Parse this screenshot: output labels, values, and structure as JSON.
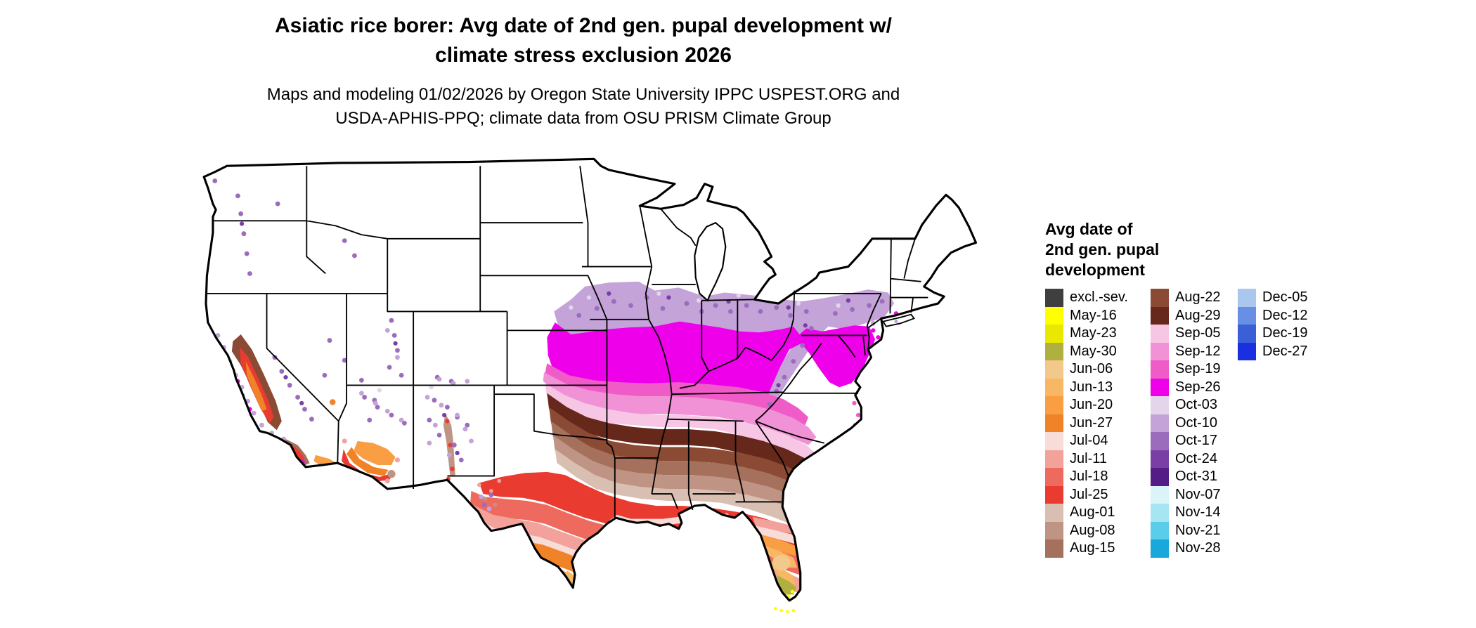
{
  "title": {
    "lines": [
      "Asiatic rice borer: Avg date of 2nd gen. pupal development w/",
      "climate stress exclusion 2026"
    ]
  },
  "subtitle": {
    "lines": [
      "Maps and modeling 01/02/2026 by Oregon State University IPPC USPEST.ORG and",
      "USDA-APHIS-PPQ; climate data from OSU PRISM Climate Group"
    ]
  },
  "legend": {
    "title_lines": [
      "Avg date of",
      "2nd gen. pupal",
      "development"
    ],
    "columns": [
      {
        "entries": [
          {
            "label": "excl.-sev.",
            "color": "#3f3f3f"
          },
          {
            "label": "May-16",
            "color": "#ffff00"
          },
          {
            "label": "May-23",
            "color": "#e8e800"
          },
          {
            "label": "May-30",
            "color": "#b0b040"
          },
          {
            "label": "Jun-06",
            "color": "#f2c98a"
          },
          {
            "label": "Jun-13",
            "color": "#f7b763"
          },
          {
            "label": "Jun-20",
            "color": "#fa9e43"
          },
          {
            "label": "Jun-27",
            "color": "#f08228"
          },
          {
            "label": "Jul-04",
            "color": "#f7dcd8"
          },
          {
            "label": "Jul-11",
            "color": "#f2a19b"
          },
          {
            "label": "Jul-18",
            "color": "#ef6a5e"
          },
          {
            "label": "Jul-25",
            "color": "#ea3b30"
          },
          {
            "label": "Aug-01",
            "color": "#d9beb2"
          },
          {
            "label": "Aug-08",
            "color": "#c09484"
          },
          {
            "label": "Aug-15",
            "color": "#a5705c"
          }
        ]
      },
      {
        "entries": [
          {
            "label": "Aug-22",
            "color": "#8a4a34"
          },
          {
            "label": "Aug-29",
            "color": "#67281c"
          },
          {
            "label": "Sep-05",
            "color": "#f6c6e4"
          },
          {
            "label": "Sep-12",
            "color": "#f292d6"
          },
          {
            "label": "Sep-19",
            "color": "#ef5cc8"
          },
          {
            "label": "Sep-26",
            "color": "#ef00ea"
          },
          {
            "label": "Oct-03",
            "color": "#e3d6ea"
          },
          {
            "label": "Oct-10",
            "color": "#c3a3d8"
          },
          {
            "label": "Oct-17",
            "color": "#9c6cbc"
          },
          {
            "label": "Oct-24",
            "color": "#7a3fa5"
          },
          {
            "label": "Oct-31",
            "color": "#531d85"
          },
          {
            "label": "Nov-07",
            "color": "#daf4fa"
          },
          {
            "label": "Nov-14",
            "color": "#a6e6f2"
          },
          {
            "label": "Nov-21",
            "color": "#59cdea"
          },
          {
            "label": "Nov-28",
            "color": "#1aa7d9"
          }
        ]
      },
      {
        "entries": [
          {
            "label": "Dec-05",
            "color": "#a9c7ef"
          },
          {
            "label": "Dec-12",
            "color": "#688fe3"
          },
          {
            "label": "Dec-19",
            "color": "#3a5fd6"
          },
          {
            "label": "Dec-27",
            "color": "#1a2fe0"
          }
        ]
      }
    ]
  },
  "map": {
    "name": "Contiguous United States choropleth of avg date of 2nd generation pupal development",
    "background": "#ffffff",
    "border_color": "#000000"
  }
}
